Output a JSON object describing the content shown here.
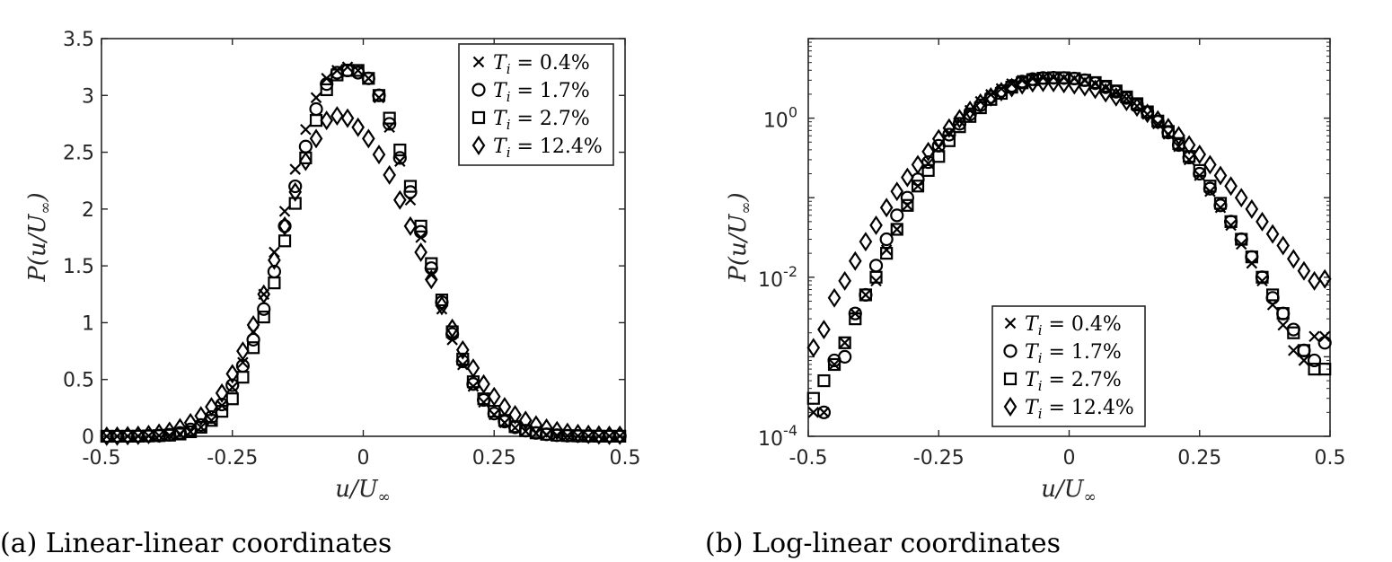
{
  "captions": [
    "(a) Linear-linear coordinates",
    "(b) Log-linear coordinates"
  ],
  "chart_data": [
    {
      "type": "scatter",
      "yscale": "linear",
      "xlabel": "u/U∞",
      "ylabel": "P(u/U∞)",
      "xlim": [
        -0.5,
        0.5
      ],
      "ylim": [
        0,
        3.5
      ],
      "xticks": [
        "-0.5",
        "-0.25",
        "0",
        "0.25",
        "0.5"
      ],
      "yticks": [
        "0",
        "0.5",
        "1",
        "1.5",
        "2",
        "2.5",
        "3",
        "3.5"
      ],
      "legend_position": "top-right",
      "series": [
        {
          "name": "Ti = 0.4%",
          "marker": "x",
          "x": [
            -0.49,
            -0.47,
            -0.45,
            -0.43,
            -0.41,
            -0.39,
            -0.37,
            -0.35,
            -0.33,
            -0.31,
            -0.29,
            -0.27,
            -0.25,
            -0.23,
            -0.21,
            -0.19,
            -0.17,
            -0.15,
            -0.13,
            -0.11,
            -0.09,
            -0.07,
            -0.05,
            -0.03,
            -0.01,
            0.01,
            0.03,
            0.05,
            0.07,
            0.09,
            0.11,
            0.13,
            0.15,
            0.17,
            0.19,
            0.21,
            0.23,
            0.25,
            0.27,
            0.29,
            0.31,
            0.33,
            0.35,
            0.37,
            0.39,
            0.41,
            0.43,
            0.45,
            0.47,
            0.49
          ],
          "y": [
            0.0002,
            0.0002,
            0.0008,
            0.0015,
            0.0035,
            0.006,
            0.009,
            0.022,
            0.04,
            0.08,
            0.14,
            0.27,
            0.43,
            0.65,
            0.92,
            1.25,
            1.62,
            1.98,
            2.35,
            2.7,
            2.98,
            3.15,
            3.22,
            3.25,
            3.22,
            3.15,
            2.98,
            2.72,
            2.42,
            2.08,
            1.75,
            1.42,
            1.12,
            0.85,
            0.63,
            0.44,
            0.3,
            0.19,
            0.12,
            0.075,
            0.045,
            0.026,
            0.015,
            0.009,
            0.0045,
            0.0025,
            0.0012,
            0.0009,
            0.0018,
            0.0018
          ]
        },
        {
          "name": "Ti = 1.7%",
          "marker": "o",
          "x": [
            -0.47,
            -0.45,
            -0.43,
            -0.41,
            -0.39,
            -0.37,
            -0.35,
            -0.33,
            -0.31,
            -0.29,
            -0.27,
            -0.25,
            -0.23,
            -0.21,
            -0.19,
            -0.17,
            -0.15,
            -0.13,
            -0.11,
            -0.09,
            -0.07,
            -0.05,
            -0.03,
            -0.01,
            0.01,
            0.03,
            0.05,
            0.07,
            0.09,
            0.11,
            0.13,
            0.15,
            0.17,
            0.19,
            0.21,
            0.23,
            0.25,
            0.27,
            0.29,
            0.31,
            0.33,
            0.35,
            0.37,
            0.39,
            0.41,
            0.43,
            0.45,
            0.47,
            0.49
          ],
          "y": [
            0.0002,
            0.0009,
            0.001,
            0.0035,
            0.006,
            0.014,
            0.03,
            0.06,
            0.1,
            0.17,
            0.28,
            0.45,
            0.62,
            0.85,
            1.12,
            1.45,
            1.85,
            2.2,
            2.55,
            2.88,
            3.1,
            3.2,
            3.22,
            3.2,
            3.15,
            3.0,
            2.75,
            2.45,
            2.15,
            1.8,
            1.48,
            1.18,
            0.9,
            0.66,
            0.46,
            0.32,
            0.2,
            0.13,
            0.08,
            0.05,
            0.03,
            0.018,
            0.01,
            0.0055,
            0.0035,
            0.0022,
            0.0012,
            0.0009,
            0.0015
          ]
        },
        {
          "name": "Ti = 2.7%",
          "marker": "s",
          "x": [
            -0.49,
            -0.47,
            -0.45,
            -0.43,
            -0.41,
            -0.39,
            -0.37,
            -0.35,
            -0.33,
            -0.31,
            -0.29,
            -0.27,
            -0.25,
            -0.23,
            -0.21,
            -0.19,
            -0.17,
            -0.15,
            -0.13,
            -0.11,
            -0.09,
            -0.07,
            -0.05,
            -0.03,
            -0.01,
            0.01,
            0.03,
            0.05,
            0.07,
            0.09,
            0.11,
            0.13,
            0.15,
            0.17,
            0.19,
            0.21,
            0.23,
            0.25,
            0.27,
            0.29,
            0.31,
            0.33,
            0.35,
            0.37,
            0.39,
            0.41,
            0.43,
            0.45,
            0.47,
            0.49
          ],
          "y": [
            0.0003,
            0.0005,
            0.0008,
            0.0015,
            0.003,
            0.006,
            0.01,
            0.02,
            0.04,
            0.08,
            0.14,
            0.22,
            0.33,
            0.52,
            0.78,
            1.05,
            1.35,
            1.72,
            2.05,
            2.45,
            2.78,
            3.05,
            3.18,
            3.22,
            3.22,
            3.15,
            3.0,
            2.8,
            2.52,
            2.2,
            1.85,
            1.52,
            1.2,
            0.92,
            0.68,
            0.48,
            0.33,
            0.22,
            0.14,
            0.085,
            0.05,
            0.03,
            0.018,
            0.01,
            0.006,
            0.0035,
            0.002,
            0.0012,
            0.0007,
            0.0007
          ]
        },
        {
          "name": "Ti = 12.4%",
          "marker": "d",
          "x": [
            -0.49,
            -0.47,
            -0.45,
            -0.43,
            -0.41,
            -0.39,
            -0.37,
            -0.35,
            -0.33,
            -0.31,
            -0.29,
            -0.27,
            -0.25,
            -0.23,
            -0.21,
            -0.19,
            -0.17,
            -0.15,
            -0.13,
            -0.11,
            -0.09,
            -0.07,
            -0.05,
            -0.03,
            -0.01,
            0.01,
            0.03,
            0.05,
            0.07,
            0.09,
            0.11,
            0.13,
            0.15,
            0.17,
            0.19,
            0.21,
            0.23,
            0.25,
            0.27,
            0.29,
            0.31,
            0.33,
            0.35,
            0.37,
            0.39,
            0.41,
            0.43,
            0.45,
            0.47,
            0.49
          ],
          "y": [
            0.0013,
            0.0022,
            0.0055,
            0.009,
            0.016,
            0.028,
            0.045,
            0.075,
            0.12,
            0.18,
            0.26,
            0.38,
            0.55,
            0.75,
            0.98,
            1.25,
            1.55,
            1.85,
            2.15,
            2.42,
            2.62,
            2.78,
            2.82,
            2.8,
            2.72,
            2.62,
            2.48,
            2.3,
            2.08,
            1.85,
            1.62,
            1.38,
            1.15,
            0.95,
            0.76,
            0.6,
            0.46,
            0.35,
            0.26,
            0.19,
            0.14,
            0.1,
            0.072,
            0.05,
            0.035,
            0.025,
            0.017,
            0.012,
            0.009,
            0.0095
          ]
        }
      ]
    },
    {
      "type": "scatter",
      "yscale": "log",
      "xlabel": "u/U∞",
      "ylabel": "P(u/U∞)",
      "xlim": [
        -0.5,
        0.5
      ],
      "ylim": [
        0.0001,
        10
      ],
      "xticks": [
        "-0.5",
        "-0.25",
        "0",
        "0.25",
        "0.5"
      ],
      "yticks": [
        {
          "base": "10",
          "exp": "-4"
        },
        {
          "base": "10",
          "exp": "-2"
        },
        {
          "base": "10",
          "exp": "0"
        }
      ],
      "legend_position": "bottom-center",
      "series_ref": "same series as chart (a)"
    }
  ]
}
